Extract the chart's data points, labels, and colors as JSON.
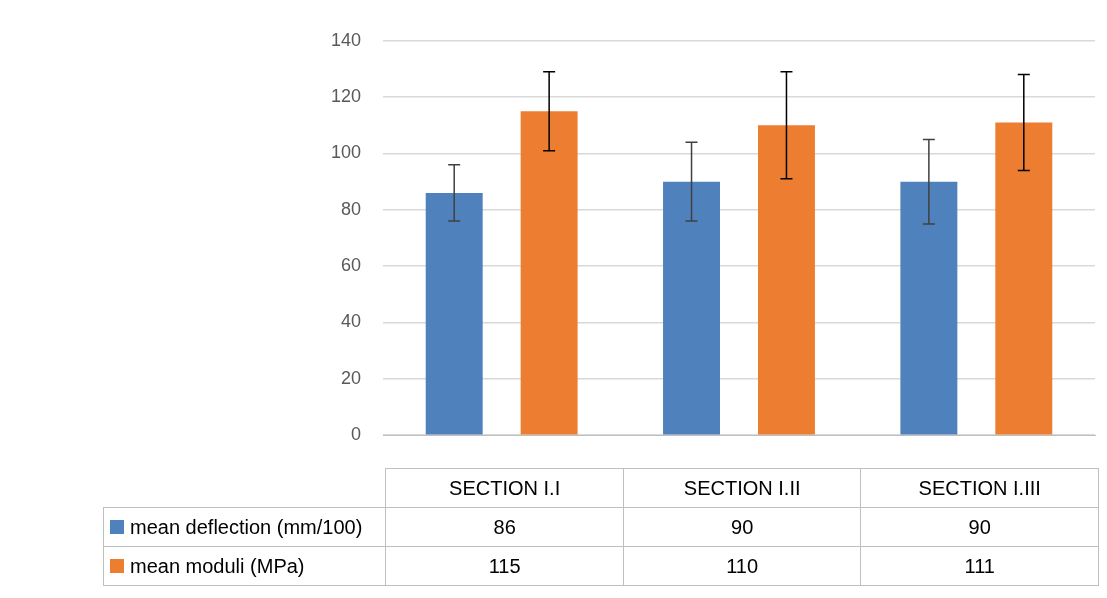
{
  "chart_data": {
    "type": "bar",
    "categories": [
      "SECTION I.I",
      "SECTION I.II",
      "SECTION I.III"
    ],
    "series": [
      {
        "name": "mean deflection (mm/100)",
        "color": "#4f81bd",
        "values": [
          86,
          90,
          90
        ],
        "errors": [
          10,
          14,
          15
        ]
      },
      {
        "name": "mean moduli (MPa)",
        "color": "#ed7d31",
        "values": [
          115,
          110,
          111
        ],
        "errors": [
          14,
          19,
          17
        ]
      }
    ],
    "ylim": [
      0,
      140
    ],
    "yticks": [
      0,
      20,
      40,
      60,
      80,
      100,
      120,
      140
    ],
    "grid": "y",
    "legend": "bottom",
    "data_labels": true
  }
}
